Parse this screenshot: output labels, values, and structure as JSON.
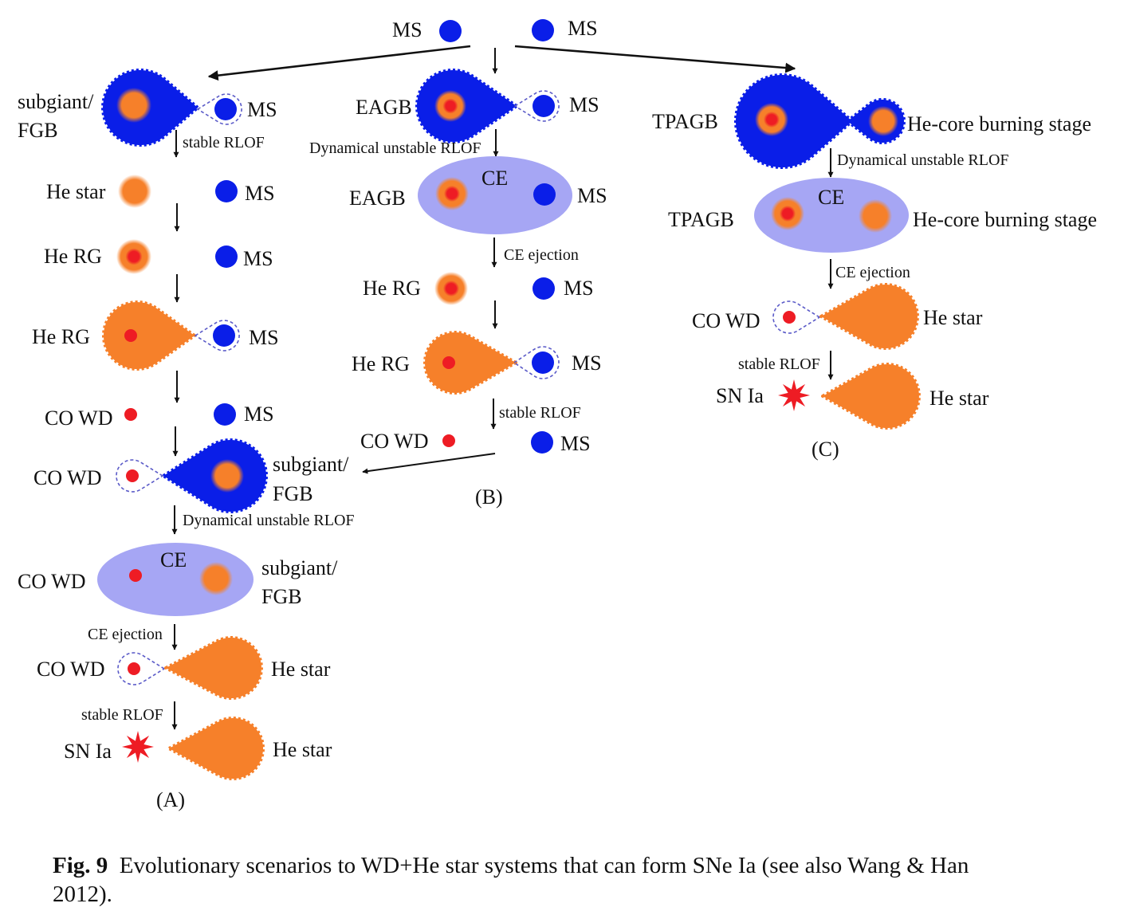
{
  "colors": {
    "ms_blue": "#0a1ee8",
    "he_orange": "#f6802a",
    "wd_red": "#ee1c24",
    "ce_lavender": "#a6a6f4",
    "dashed_lobe": "#5a5ac8"
  },
  "labels": {
    "ms": "MS",
    "subgiant": "subgiant/",
    "fgb": "FGB",
    "eagb": "EAGB",
    "tpagb": "TPAGB",
    "he_core_burning": "He-core burning stage",
    "he_star": "He star",
    "he_rg": "He RG",
    "co_wd": "CO WD",
    "sn_ia": "SN Ia",
    "ce": "CE",
    "stable_rlof": "stable RLOF",
    "dyn_unstable_rlof": "Dynamical unstable RLOF",
    "ce_ejection": "CE ejection",
    "panel_a": "(A)",
    "panel_b": "(B)",
    "panel_c": "(C)"
  },
  "caption": {
    "label": "Fig. 9",
    "text": "Evolutionary scenarios to WD+He star systems that can form SNe Ia (see also Wang & Han 2012)."
  }
}
